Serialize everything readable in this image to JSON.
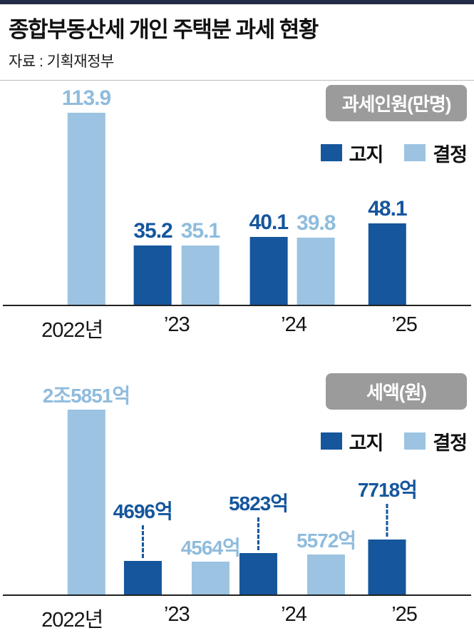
{
  "page": {
    "title": "종합부동산세 개인 주택분 과세 현황",
    "source": "자료 : 기획재정부"
  },
  "legend": {
    "notice": "고지",
    "decision": "결정"
  },
  "colors": {
    "notice": "#15569c",
    "decision": "#9cc3e1",
    "decision_label": "#8fbcdd",
    "badge_bg": "#9b9b9b",
    "badge_text": "#ffffff",
    "axis": "#222222",
    "top_rule": "#222c44",
    "divider": "#bcbcbc",
    "text": "#111111"
  },
  "chart_data": [
    {
      "type": "bar",
      "title": "과세인원(만명)",
      "categories": [
        "2022년",
        "’23",
        "’24",
        "’25"
      ],
      "series": [
        {
          "name": "고지",
          "values": [
            null,
            35.2,
            40.1,
            48.1
          ],
          "labels": [
            null,
            "35.2",
            "40.1",
            "48.1"
          ]
        },
        {
          "name": "결정",
          "values": [
            113.9,
            35.1,
            39.8,
            null
          ],
          "labels": [
            "113.9",
            "35.1",
            "39.8",
            null
          ]
        }
      ],
      "ylim": [
        0,
        125
      ],
      "grid": false,
      "legend_position": "top-right"
    },
    {
      "type": "bar",
      "title": "세액(원)",
      "categories": [
        "2022년",
        "’23",
        "’24",
        "’25"
      ],
      "series": [
        {
          "name": "고지",
          "values": [
            null,
            4696,
            5823,
            7718
          ],
          "labels": [
            null,
            "4696억",
            "5823억",
            "7718억"
          ],
          "label_style": "raised-dashed"
        },
        {
          "name": "결정",
          "values": [
            25851,
            4564,
            5572,
            null
          ],
          "labels": [
            "2조5851억",
            "4564억",
            "5572억",
            null
          ]
        }
      ],
      "ylim": [
        0,
        26500
      ],
      "grid": false,
      "legend_position": "top-right"
    }
  ]
}
